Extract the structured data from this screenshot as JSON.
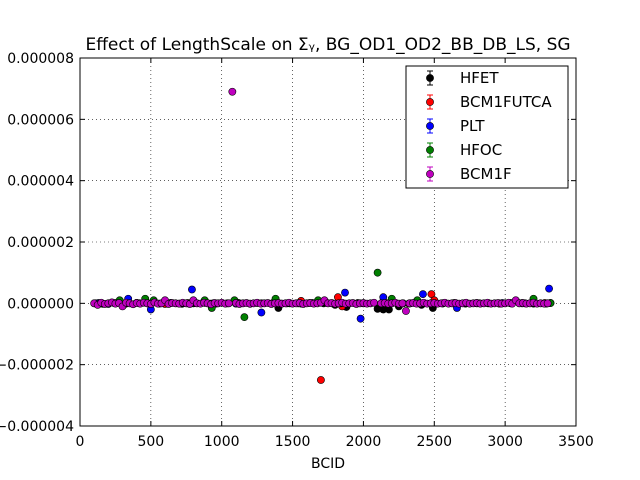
{
  "chart_data": {
    "type": "scatter",
    "title": "Effect of LengthScale on Σᵧ, BG_OD1_OD2_BB_DB_LS, SG",
    "xlabel": "BCID",
    "ylabel": "",
    "xlim": [
      0,
      3500
    ],
    "ylim": [
      -4e-06,
      8e-06
    ],
    "x_ticks": [
      0,
      500,
      1000,
      1500,
      2000,
      2500,
      3000,
      3500
    ],
    "x_tick_labels": [
      "0",
      "500",
      "1000",
      "1500",
      "2000",
      "2500",
      "3000",
      "3500"
    ],
    "y_ticks": [
      -4e-06,
      -2e-06,
      0.0,
      2e-06,
      4e-06,
      6e-06,
      8e-06
    ],
    "y_tick_labels": [
      "−0.000004",
      "−0.000002",
      "0.000000",
      "0.000002",
      "0.000004",
      "0.000006",
      "0.000008"
    ],
    "grid": true,
    "legend_position": "top-right",
    "series": [
      {
        "name": "HFET",
        "color": "#000000",
        "points": [
          [
            110,
            0.0
          ],
          [
            160,
            -1.5e-08
          ],
          [
            240,
            1e-08
          ],
          [
            320,
            -2e-08
          ],
          [
            400,
            1.5e-08
          ],
          [
            480,
            0.0
          ],
          [
            560,
            -1e-08
          ],
          [
            640,
            1e-08
          ],
          [
            720,
            -1.5e-08
          ],
          [
            800,
            0.0
          ],
          [
            880,
            1.5e-08
          ],
          [
            960,
            -1e-08
          ],
          [
            1040,
            0.0
          ],
          [
            1120,
            1e-08
          ],
          [
            1200,
            -1.5e-08
          ],
          [
            1280,
            0.0
          ],
          [
            1360,
            1e-08
          ],
          [
            1400,
            -1.5e-07
          ],
          [
            1480,
            0.0
          ],
          [
            1560,
            -1e-08
          ],
          [
            1640,
            1e-08
          ],
          [
            1720,
            0.0
          ],
          [
            1800,
            -5e-08
          ],
          [
            1880,
            -1.2e-07
          ],
          [
            1960,
            1e-08
          ],
          [
            2100,
            -1.8e-07
          ],
          [
            2140,
            -2e-07
          ],
          [
            2180,
            -2e-07
          ],
          [
            2250,
            -1e-07
          ],
          [
            2330,
            0.0
          ],
          [
            2410,
            -5e-08
          ],
          [
            2490,
            -1.5e-07
          ],
          [
            2560,
            0.0
          ],
          [
            2640,
            1e-08
          ],
          [
            2720,
            -1e-08
          ],
          [
            2800,
            0.0
          ],
          [
            2880,
            1e-08
          ],
          [
            2960,
            -1e-08
          ],
          [
            3040,
            0.0
          ],
          [
            3120,
            1e-08
          ],
          [
            3200,
            -1e-08
          ],
          [
            3280,
            0.0
          ],
          [
            3320,
            1e-08
          ]
        ]
      },
      {
        "name": "BCM1FUTCA",
        "color": "#ff0000",
        "points": [
          [
            120,
            -1e-08
          ],
          [
            260,
            1.5e-08
          ],
          [
            420,
            0.0
          ],
          [
            600,
            -2e-08
          ],
          [
            760,
            1e-08
          ],
          [
            920,
            -1e-08
          ],
          [
            1100,
            0.0
          ],
          [
            1250,
            1e-08
          ],
          [
            1420,
            -1e-08
          ],
          [
            1560,
            8e-08
          ],
          [
            1700,
            -2.5e-06
          ],
          [
            1820,
            2e-07
          ],
          [
            1850,
            -1e-07
          ],
          [
            2000,
            0.0
          ],
          [
            2160,
            1e-08
          ],
          [
            2320,
            -1e-08
          ],
          [
            2480,
            3e-07
          ],
          [
            2500,
            1e-07
          ],
          [
            2640,
            0.0
          ],
          [
            2800,
            1e-08
          ],
          [
            2960,
            -1e-08
          ],
          [
            3120,
            0.0
          ],
          [
            3280,
            1e-08
          ]
        ]
      },
      {
        "name": "PLT",
        "color": "#0000ff",
        "points": [
          [
            130,
            1e-08
          ],
          [
            200,
            -2e-08
          ],
          [
            340,
            1.5e-07
          ],
          [
            500,
            -2e-07
          ],
          [
            640,
            1e-08
          ],
          [
            770,
            -1e-08
          ],
          [
            790,
            4.5e-07
          ],
          [
            940,
            0.0
          ],
          [
            1100,
            -1e-08
          ],
          [
            1280,
            -3e-07
          ],
          [
            1460,
            0.0
          ],
          [
            1620,
            1e-08
          ],
          [
            1780,
            0.0
          ],
          [
            1870,
            3.5e-07
          ],
          [
            1980,
            -5e-07
          ],
          [
            2140,
            2e-07
          ],
          [
            2280,
            0.0
          ],
          [
            2420,
            3e-07
          ],
          [
            2560,
            0.0
          ],
          [
            2660,
            -1.5e-07
          ],
          [
            2820,
            0.0
          ],
          [
            2980,
            1e-08
          ],
          [
            3140,
            0.0
          ],
          [
            3290,
            -1e-08
          ],
          [
            3310,
            4.8e-07
          ]
        ]
      },
      {
        "name": "HFOC",
        "color": "#008000",
        "points": [
          [
            140,
            0.0
          ],
          [
            280,
            1e-07
          ],
          [
            460,
            1.5e-07
          ],
          [
            520,
            1e-07
          ],
          [
            700,
            -1e-08
          ],
          [
            880,
            1e-07
          ],
          [
            930,
            -1.5e-07
          ],
          [
            1090,
            1e-07
          ],
          [
            1160,
            -4.5e-07
          ],
          [
            1380,
            1.5e-07
          ],
          [
            1540,
            0.0
          ],
          [
            1680,
            1e-07
          ],
          [
            1840,
            0.0
          ],
          [
            2100,
            1e-06
          ],
          [
            2200,
            1.5e-07
          ],
          [
            2380,
            1e-07
          ],
          [
            2560,
            0.0
          ],
          [
            2720,
            1e-08
          ],
          [
            2880,
            0.0
          ],
          [
            3040,
            1e-08
          ],
          [
            3200,
            1.5e-07
          ],
          [
            3320,
            1e-08
          ]
        ]
      },
      {
        "name": "BCM1F",
        "color": "#bf00bf",
        "points": [
          [
            100,
            0.0
          ],
          [
            125,
            -5e-08
          ],
          [
            150,
            2e-08
          ],
          [
            175,
            -2e-08
          ],
          [
            200,
            0.0
          ],
          [
            225,
            3e-08
          ],
          [
            250,
            -1e-08
          ],
          [
            275,
            1e-08
          ],
          [
            300,
            -1e-07
          ],
          [
            325,
            2e-08
          ],
          [
            350,
            0.0
          ],
          [
            375,
            -3e-08
          ],
          [
            400,
            1e-08
          ],
          [
            425,
            -1e-08
          ],
          [
            450,
            2e-08
          ],
          [
            475,
            0.0
          ],
          [
            500,
            -2e-08
          ],
          [
            525,
            3e-08
          ],
          [
            550,
            -1e-08
          ],
          [
            575,
            0.0
          ],
          [
            600,
            1e-07
          ],
          [
            625,
            -2e-08
          ],
          [
            650,
            1e-08
          ],
          [
            675,
            0.0
          ],
          [
            700,
            -1e-08
          ],
          [
            725,
            2e-08
          ],
          [
            750,
            0.0
          ],
          [
            775,
            -2e-08
          ],
          [
            800,
            1e-07
          ],
          [
            825,
            0.0
          ],
          [
            850,
            -1e-08
          ],
          [
            875,
            2e-08
          ],
          [
            900,
            0.0
          ],
          [
            925,
            -3e-08
          ],
          [
            950,
            1e-08
          ],
          [
            975,
            0.0
          ],
          [
            1000,
            2e-08
          ],
          [
            1025,
            -1e-08
          ],
          [
            1050,
            0.0
          ],
          [
            1075,
            6.9e-06
          ],
          [
            1100,
            1e-08
          ],
          [
            1125,
            -2e-08
          ],
          [
            1150,
            0.0
          ],
          [
            1175,
            1e-08
          ],
          [
            1200,
            -1e-08
          ],
          [
            1225,
            0.0
          ],
          [
            1250,
            2e-08
          ],
          [
            1275,
            -1e-08
          ],
          [
            1300,
            0.0
          ],
          [
            1325,
            1e-08
          ],
          [
            1350,
            -2e-08
          ],
          [
            1375,
            0.0
          ],
          [
            1400,
            1e-08
          ],
          [
            1425,
            -1e-08
          ],
          [
            1450,
            0.0
          ],
          [
            1475,
            2e-08
          ],
          [
            1500,
            -1e-08
          ],
          [
            1525,
            0.0
          ],
          [
            1550,
            1e-08
          ],
          [
            1575,
            -2e-08
          ],
          [
            1600,
            0.0
          ],
          [
            1625,
            1e-08
          ],
          [
            1650,
            -1e-08
          ],
          [
            1675,
            0.0
          ],
          [
            1700,
            2e-08
          ],
          [
            1725,
            1e-07
          ],
          [
            1750,
            0.0
          ],
          [
            1775,
            1e-08
          ],
          [
            1800,
            -1e-08
          ],
          [
            1825,
            0.0
          ],
          [
            1850,
            2e-08
          ],
          [
            1875,
            -1e-08
          ],
          [
            1900,
            0.0
          ],
          [
            1925,
            1e-08
          ],
          [
            1950,
            -2e-08
          ],
          [
            1975,
            0.0
          ],
          [
            2000,
            1e-08
          ],
          [
            2025,
            -1e-08
          ],
          [
            2050,
            0.0
          ],
          [
            2075,
            2e-08
          ],
          [
            2125,
            0.0
          ],
          [
            2150,
            1e-08
          ],
          [
            2175,
            -1e-08
          ],
          [
            2200,
            0.0
          ],
          [
            2225,
            2e-08
          ],
          [
            2250,
            -1e-08
          ],
          [
            2275,
            0.0
          ],
          [
            2300,
            -2.5e-07
          ],
          [
            2325,
            0.0
          ],
          [
            2350,
            1e-08
          ],
          [
            2375,
            -1e-08
          ],
          [
            2400,
            0.0
          ],
          [
            2425,
            2e-08
          ],
          [
            2450,
            -1e-08
          ],
          [
            2475,
            0.0
          ],
          [
            2500,
            1e-08
          ],
          [
            2525,
            -1e-08
          ],
          [
            2550,
            0.0
          ],
          [
            2575,
            2e-08
          ],
          [
            2600,
            -1e-08
          ],
          [
            2625,
            0.0
          ],
          [
            2650,
            1e-08
          ],
          [
            2675,
            -1e-08
          ],
          [
            2700,
            0.0
          ],
          [
            2725,
            2e-08
          ],
          [
            2750,
            -1e-08
          ],
          [
            2775,
            0.0
          ],
          [
            2800,
            1e-08
          ],
          [
            2825,
            -1e-08
          ],
          [
            2850,
            0.0
          ],
          [
            2875,
            2e-08
          ],
          [
            2900,
            -1e-08
          ],
          [
            2925,
            0.0
          ],
          [
            2950,
            1e-08
          ],
          [
            2975,
            -1e-08
          ],
          [
            3000,
            0.0
          ],
          [
            3025,
            2e-08
          ],
          [
            3050,
            -1e-08
          ],
          [
            3075,
            1e-07
          ],
          [
            3100,
            0.0
          ],
          [
            3125,
            1e-08
          ],
          [
            3150,
            -1e-08
          ],
          [
            3175,
            0.0
          ],
          [
            3200,
            2e-08
          ],
          [
            3225,
            -1e-08
          ],
          [
            3250,
            0.0
          ],
          [
            3275,
            -1e-08
          ],
          [
            3300,
            0.0
          ]
        ]
      }
    ]
  }
}
